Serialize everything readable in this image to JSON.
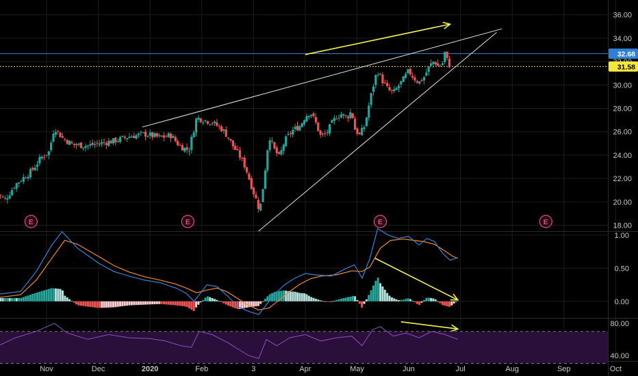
{
  "colors": {
    "background": "#000000",
    "grid": "#1c1c1c",
    "separator": "#2a2a2a",
    "up": "#26a69a",
    "down": "#ef5350",
    "annotation": "#f5f34d",
    "trendline": "#e6e6e6",
    "price_line": "#3b7ddd",
    "current_line": "#f5e63b",
    "macd": "#3b82d6",
    "signal": "#f08a2d",
    "rsi": "#8e4fbf",
    "rsi_band": "#2a0f3a",
    "earnings": "#d9537a"
  },
  "chart_data": [
    {
      "type": "candlestick",
      "panel": "price",
      "y_ticks": [
        "36.00",
        "34.00",
        "32.00",
        "30.00",
        "28.00",
        "26.00",
        "24.00",
        "22.00",
        "20.00",
        "18.00"
      ],
      "ylim": [
        17.5,
        36.8
      ],
      "x_labels": [
        "Nov",
        "Dec",
        "2020",
        "Feb",
        "3",
        "Apr",
        "May",
        "Jun",
        "Jul",
        "Aug",
        "Sep",
        "Oct"
      ],
      "x_domain_months": [
        -0.9,
        10.85
      ],
      "price_labels": [
        {
          "text": "32.68",
          "value": 32.68,
          "kind": "horizontal-line"
        },
        {
          "text": "31.58",
          "value": 31.58,
          "kind": "last-price"
        }
      ],
      "earnings_markers": [
        {
          "label": "E",
          "month": -0.3
        },
        {
          "label": "E",
          "month": 2.73
        },
        {
          "label": "E",
          "month": 6.45
        },
        {
          "label": "E",
          "month": 9.65
        }
      ],
      "price_path": [
        [
          -1.0,
          20.8
        ],
        [
          -0.8,
          20.2
        ],
        [
          -0.6,
          21.5
        ],
        [
          -0.3,
          22.6
        ],
        [
          -0.1,
          23.8
        ],
        [
          0.05,
          24.3
        ],
        [
          0.15,
          26.4
        ],
        [
          0.3,
          25.5
        ],
        [
          0.5,
          24.9
        ],
        [
          0.8,
          24.8
        ],
        [
          1.0,
          25.0
        ],
        [
          1.3,
          25.2
        ],
        [
          1.6,
          25.6
        ],
        [
          1.9,
          25.8
        ],
        [
          2.2,
          25.5
        ],
        [
          2.4,
          25.7
        ],
        [
          2.55,
          24.9
        ],
        [
          2.65,
          24.6
        ],
        [
          2.75,
          24.4
        ],
        [
          2.9,
          27.2
        ],
        [
          3.05,
          27.0
        ],
        [
          3.2,
          26.8
        ],
        [
          3.4,
          26.2
        ],
        [
          3.5,
          25.6
        ],
        [
          3.6,
          24.8
        ],
        [
          3.75,
          23.8
        ],
        [
          3.85,
          22.9
        ],
        [
          3.95,
          21.5
        ],
        [
          4.05,
          20.2
        ],
        [
          4.12,
          19.2
        ],
        [
          4.2,
          21.8
        ],
        [
          4.3,
          25.7
        ],
        [
          4.4,
          24.5
        ],
        [
          4.5,
          23.8
        ],
        [
          4.6,
          25.2
        ],
        [
          4.75,
          26.1
        ],
        [
          4.9,
          26.5
        ],
        [
          5.0,
          27.3
        ],
        [
          5.1,
          27.7
        ],
        [
          5.2,
          26.8
        ],
        [
          5.3,
          25.6
        ],
        [
          5.4,
          25.8
        ],
        [
          5.5,
          26.6
        ],
        [
          5.6,
          27.3
        ],
        [
          5.7,
          27.5
        ],
        [
          5.8,
          27.2
        ],
        [
          5.9,
          27.8
        ],
        [
          5.95,
          26.3
        ],
        [
          6.05,
          25.7
        ],
        [
          6.15,
          26.5
        ],
        [
          6.25,
          28.7
        ],
        [
          6.35,
          30.6
        ],
        [
          6.4,
          31.2
        ],
        [
          6.5,
          30.3
        ],
        [
          6.6,
          29.6
        ],
        [
          6.7,
          29.3
        ],
        [
          6.8,
          29.9
        ],
        [
          6.9,
          30.5
        ],
        [
          7.0,
          31.2
        ],
        [
          7.1,
          30.6
        ],
        [
          7.2,
          30.2
        ],
        [
          7.3,
          30.7
        ],
        [
          7.4,
          31.6
        ],
        [
          7.5,
          32.1
        ],
        [
          7.55,
          31.6
        ],
        [
          7.65,
          31.8
        ],
        [
          7.7,
          32.8
        ],
        [
          7.75,
          32.0
        ],
        [
          7.8,
          31.6
        ]
      ]
    },
    {
      "type": "macd",
      "panel": "macd",
      "y_ticks": [
        "1.00",
        "0.50",
        "0.00"
      ],
      "ylim": [
        -0.25,
        1.05
      ],
      "series": [
        {
          "key": "macd",
          "points": [
            [
              -1.0,
              0.1
            ],
            [
              -0.5,
              0.15
            ],
            [
              -0.2,
              0.45
            ],
            [
              0.1,
              0.85
            ],
            [
              0.3,
              1.05
            ],
            [
              0.6,
              0.8
            ],
            [
              1.0,
              0.58
            ],
            [
              1.3,
              0.45
            ],
            [
              1.6,
              0.38
            ],
            [
              1.9,
              0.32
            ],
            [
              2.2,
              0.28
            ],
            [
              2.5,
              0.2
            ],
            [
              2.7,
              0.12
            ],
            [
              2.85,
              0.0
            ],
            [
              2.95,
              0.1
            ],
            [
              3.1,
              0.25
            ],
            [
              3.3,
              0.22
            ],
            [
              3.5,
              0.08
            ],
            [
              3.7,
              -0.08
            ],
            [
              3.9,
              -0.15
            ],
            [
              4.1,
              -0.2
            ],
            [
              4.25,
              -0.05
            ],
            [
              4.4,
              0.1
            ],
            [
              4.6,
              0.25
            ],
            [
              4.8,
              0.35
            ],
            [
              5.0,
              0.42
            ],
            [
              5.2,
              0.4
            ],
            [
              5.5,
              0.38
            ],
            [
              5.8,
              0.5
            ],
            [
              5.95,
              0.55
            ],
            [
              6.1,
              0.35
            ],
            [
              6.25,
              0.65
            ],
            [
              6.4,
              1.1
            ],
            [
              6.6,
              1.0
            ],
            [
              6.8,
              0.95
            ],
            [
              7.0,
              0.98
            ],
            [
              7.2,
              0.85
            ],
            [
              7.35,
              0.95
            ],
            [
              7.5,
              0.9
            ],
            [
              7.65,
              0.73
            ],
            [
              7.8,
              0.62
            ],
            [
              7.95,
              0.66
            ]
          ]
        },
        {
          "key": "signal",
          "points": [
            [
              -1.0,
              0.05
            ],
            [
              -0.5,
              0.1
            ],
            [
              -0.2,
              0.32
            ],
            [
              0.1,
              0.65
            ],
            [
              0.35,
              0.92
            ],
            [
              0.6,
              0.86
            ],
            [
              1.0,
              0.68
            ],
            [
              1.3,
              0.54
            ],
            [
              1.6,
              0.44
            ],
            [
              1.9,
              0.37
            ],
            [
              2.2,
              0.32
            ],
            [
              2.5,
              0.26
            ],
            [
              2.7,
              0.2
            ],
            [
              2.9,
              0.13
            ],
            [
              3.1,
              0.17
            ],
            [
              3.3,
              0.2
            ],
            [
              3.5,
              0.14
            ],
            [
              3.7,
              0.04
            ],
            [
              3.9,
              -0.06
            ],
            [
              4.1,
              -0.13
            ],
            [
              4.3,
              -0.1
            ],
            [
              4.5,
              0.02
            ],
            [
              4.7,
              0.15
            ],
            [
              4.9,
              0.26
            ],
            [
              5.1,
              0.34
            ],
            [
              5.3,
              0.38
            ],
            [
              5.6,
              0.4
            ],
            [
              5.9,
              0.46
            ],
            [
              6.1,
              0.45
            ],
            [
              6.25,
              0.52
            ],
            [
              6.45,
              0.8
            ],
            [
              6.65,
              0.92
            ],
            [
              6.9,
              0.94
            ],
            [
              7.1,
              0.92
            ],
            [
              7.3,
              0.9
            ],
            [
              7.5,
              0.86
            ],
            [
              7.7,
              0.76
            ],
            [
              7.85,
              0.68
            ],
            [
              7.95,
              0.65
            ]
          ]
        }
      ]
    },
    {
      "type": "line",
      "panel": "rsi",
      "y_ticks": [
        "80.00",
        "40.00"
      ],
      "ylim": [
        33,
        86
      ],
      "band": [
        70,
        30
      ],
      "series": [
        {
          "key": "rsi",
          "points": [
            [
              -1.0,
              50
            ],
            [
              -0.6,
              62
            ],
            [
              -0.2,
              70
            ],
            [
              0.15,
              80
            ],
            [
              0.4,
              68
            ],
            [
              0.8,
              60
            ],
            [
              1.2,
              66
            ],
            [
              1.6,
              62
            ],
            [
              2.0,
              61
            ],
            [
              2.3,
              58
            ],
            [
              2.6,
              52
            ],
            [
              2.8,
              50
            ],
            [
              2.95,
              70
            ],
            [
              3.2,
              66
            ],
            [
              3.5,
              56
            ],
            [
              3.7,
              48
            ],
            [
              3.9,
              40
            ],
            [
              4.1,
              36
            ],
            [
              4.25,
              60
            ],
            [
              4.45,
              52
            ],
            [
              4.7,
              62
            ],
            [
              5.0,
              66
            ],
            [
              5.3,
              58
            ],
            [
              5.6,
              62
            ],
            [
              5.9,
              64
            ],
            [
              6.1,
              52
            ],
            [
              6.3,
              72
            ],
            [
              6.45,
              76
            ],
            [
              6.7,
              64
            ],
            [
              6.95,
              68
            ],
            [
              7.2,
              62
            ],
            [
              7.45,
              70
            ],
            [
              7.7,
              66
            ],
            [
              7.95,
              60
            ]
          ]
        }
      ]
    }
  ]
}
